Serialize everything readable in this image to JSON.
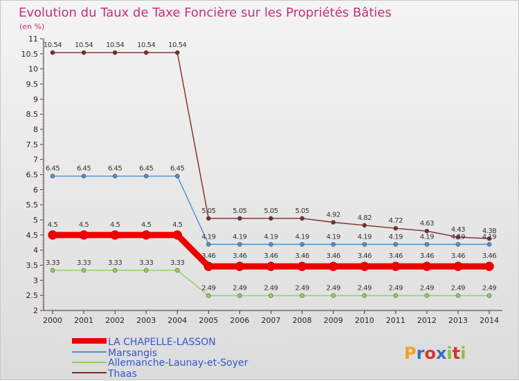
{
  "chart_data": {
    "type": "line",
    "title": "Evolution du Taux de Taxe Foncière sur les Propriétés Bâties",
    "subtitle": "(en %)",
    "x": [
      "2000",
      "2001",
      "2002",
      "2003",
      "2004",
      "2005",
      "2006",
      "2007",
      "2008",
      "2009",
      "2010",
      "2011",
      "2012",
      "2013",
      "2014"
    ],
    "ylim": [
      2,
      11
    ],
    "yticks": [
      "2",
      "2.5",
      "3",
      "3.5",
      "4",
      "4.5",
      "5",
      "5.5",
      "6",
      "6.5",
      "7",
      "7.5",
      "8",
      "8.5",
      "9",
      "9.5",
      "10",
      "10.5",
      "11"
    ],
    "series": [
      {
        "name": "LA CHAPELLE-LASSON",
        "color": "#ee0000",
        "values": [
          4.5,
          4.5,
          4.5,
          4.5,
          4.5,
          3.46,
          3.46,
          3.46,
          3.46,
          3.46,
          3.46,
          3.46,
          3.46,
          3.46,
          3.46
        ],
        "labels": [
          "4.5",
          "4.5",
          "4.5",
          "4.5",
          "4.5",
          "3.46",
          "3.46",
          "3.46",
          "3.46",
          "3.46",
          "3.46",
          "3.46",
          "3.46",
          "3.46",
          "3.46"
        ]
      },
      {
        "name": "Marsangis",
        "color": "#4a90d0",
        "values": [
          6.45,
          6.45,
          6.45,
          6.45,
          6.45,
          4.19,
          4.19,
          4.19,
          4.19,
          4.19,
          4.19,
          4.19,
          4.19,
          4.19,
          4.19
        ],
        "labels": [
          "6.45",
          "6.45",
          "6.45",
          "6.45",
          "6.45",
          "4.19",
          "4.19",
          "4.19",
          "4.19",
          "4.19",
          "4.19",
          "4.19",
          "4.19",
          "4.19",
          "4.19"
        ]
      },
      {
        "name": "Allemanche-Launay-et-Soyer",
        "color": "#8fd060",
        "values": [
          3.33,
          3.33,
          3.33,
          3.33,
          3.33,
          2.49,
          2.49,
          2.49,
          2.49,
          2.49,
          2.49,
          2.49,
          2.49,
          2.49,
          2.49
        ],
        "labels": [
          "3.33",
          "3.33",
          "3.33",
          "3.33",
          "3.33",
          "2.49",
          "2.49",
          "2.49",
          "2.49",
          "2.49",
          "2.49",
          "2.49",
          "2.49",
          "2.49",
          "2.49"
        ]
      },
      {
        "name": "Thaas",
        "color": "#7a2a2a",
        "values": [
          10.54,
          10.54,
          10.54,
          10.54,
          10.54,
          5.05,
          5.05,
          5.05,
          5.05,
          4.92,
          4.82,
          4.72,
          4.63,
          4.43,
          4.38
        ],
        "labels": [
          "10.54",
          "10.54",
          "10.54",
          "10.54",
          "10.54",
          "5.05",
          "5.05",
          "5.05",
          "5.05",
          "4.92",
          "4.82",
          "4.72",
          "4.63",
          "4.43",
          "4.38"
        ]
      }
    ],
    "legend_position": "bottom-left",
    "grid": false
  },
  "logo": {
    "letters": [
      "P",
      "r",
      "o",
      "x",
      "i",
      "t",
      "i"
    ],
    "colors": [
      "#f0a020",
      "#3070c0",
      "#e03030",
      "#3070c0",
      "#8cc040",
      "#e03030",
      "#8cc040"
    ]
  }
}
